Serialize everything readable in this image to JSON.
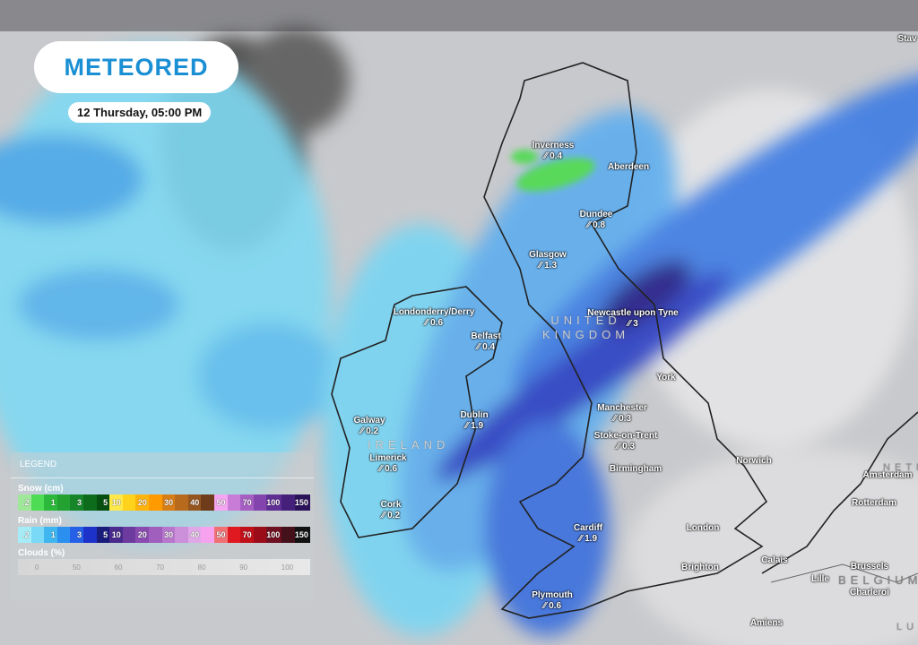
{
  "brand": {
    "logo_text": "METEORED",
    "timestamp": "12 Thursday, 05:00 PM"
  },
  "cities": [
    {
      "name": "Inverness",
      "value": "0.4"
    },
    {
      "name": "Aberdeen",
      "value": ""
    },
    {
      "name": "Dundee",
      "value": "0.8"
    },
    {
      "name": "Glasgow",
      "value": "1.3"
    },
    {
      "name": "Londonderry/Derry",
      "value": "0.6"
    },
    {
      "name": "Belfast",
      "value": "0.4"
    },
    {
      "name": "Newcastle upon Tyne",
      "value": "3"
    },
    {
      "name": "York",
      "value": ""
    },
    {
      "name": "Galway",
      "value": "0.2"
    },
    {
      "name": "Dublin",
      "value": "1.9"
    },
    {
      "name": "Manchester",
      "value": "0.3"
    },
    {
      "name": "Stoke-on-Trent",
      "value": "0.3"
    },
    {
      "name": "Limerick",
      "value": "0.6"
    },
    {
      "name": "Birmingham",
      "value": ""
    },
    {
      "name": "Norwich",
      "value": ""
    },
    {
      "name": "Amsterdam",
      "value": ""
    },
    {
      "name": "Cork",
      "value": "0.2"
    },
    {
      "name": "Rotterdam",
      "value": ""
    },
    {
      "name": "Cardiff",
      "value": "1.9"
    },
    {
      "name": "London",
      "value": ""
    },
    {
      "name": "Brighton",
      "value": ""
    },
    {
      "name": "Calais",
      "value": ""
    },
    {
      "name": "Brussels",
      "value": ""
    },
    {
      "name": "Lille",
      "value": ""
    },
    {
      "name": "Charleroi",
      "value": ""
    },
    {
      "name": "Plymouth",
      "value": "0.6"
    },
    {
      "name": "Amiens",
      "value": ""
    },
    {
      "name": "Stav",
      "value": ""
    }
  ],
  "countries": {
    "uk": "UNITED KINGDOM",
    "ireland": "IRELAND",
    "belgium": "BELGIUM",
    "netherlands": "NETHER",
    "lux": "LUX"
  },
  "rain_icon": "rain-drops-icon",
  "legend": {
    "title": "LEGEND",
    "snow": {
      "label": "Snow (cm)",
      "steps": [
        ".2",
        "",
        "1",
        "",
        "3",
        "",
        "5",
        "10",
        "",
        "20",
        "",
        "30",
        "",
        "40",
        "",
        "50",
        "",
        "70",
        "",
        "100",
        "",
        "150"
      ],
      "colors": [
        "#9fe89a",
        "#4fdc55",
        "#2cb83a",
        "#23a232",
        "#17862a",
        "#0d6b1c",
        "#064f10",
        "#ffe94a",
        "#ffd21c",
        "#ffb40c",
        "#ff9b00",
        "#d87e16",
        "#b86a1c",
        "#95551e",
        "#6e3c1a",
        "#f4a6f0",
        "#c87cd8",
        "#a55ec2",
        "#8345ad",
        "#602f94",
        "#45207a",
        "#2c1259"
      ]
    },
    "rain": {
      "label": "Rain (mm)",
      "steps": [
        ".2",
        "",
        "1",
        "",
        "3",
        "",
        "5",
        "10",
        "",
        "20",
        "",
        "30",
        "",
        "40",
        "",
        "50",
        "",
        "70",
        "",
        "100",
        "",
        "150"
      ],
      "colors": [
        "#a5ecf7",
        "#7ad9f6",
        "#3fb6f0",
        "#2b8ff0",
        "#2560e6",
        "#1d32c8",
        "#1a1c7c",
        "#4a2a8c",
        "#6d3b9e",
        "#8a4bb0",
        "#a05ebd",
        "#b777cc",
        "#cc8fd9",
        "#e0a8e6",
        "#f7a2ef",
        "#f07074",
        "#e01820",
        "#c0101a",
        "#9a0c18",
        "#6e1020",
        "#44101a",
        "#111"
      ]
    },
    "clouds": {
      "label": "Clouds (%)",
      "steps": [
        "0",
        "50",
        "60",
        "70",
        "80",
        "90",
        "100"
      ]
    }
  }
}
